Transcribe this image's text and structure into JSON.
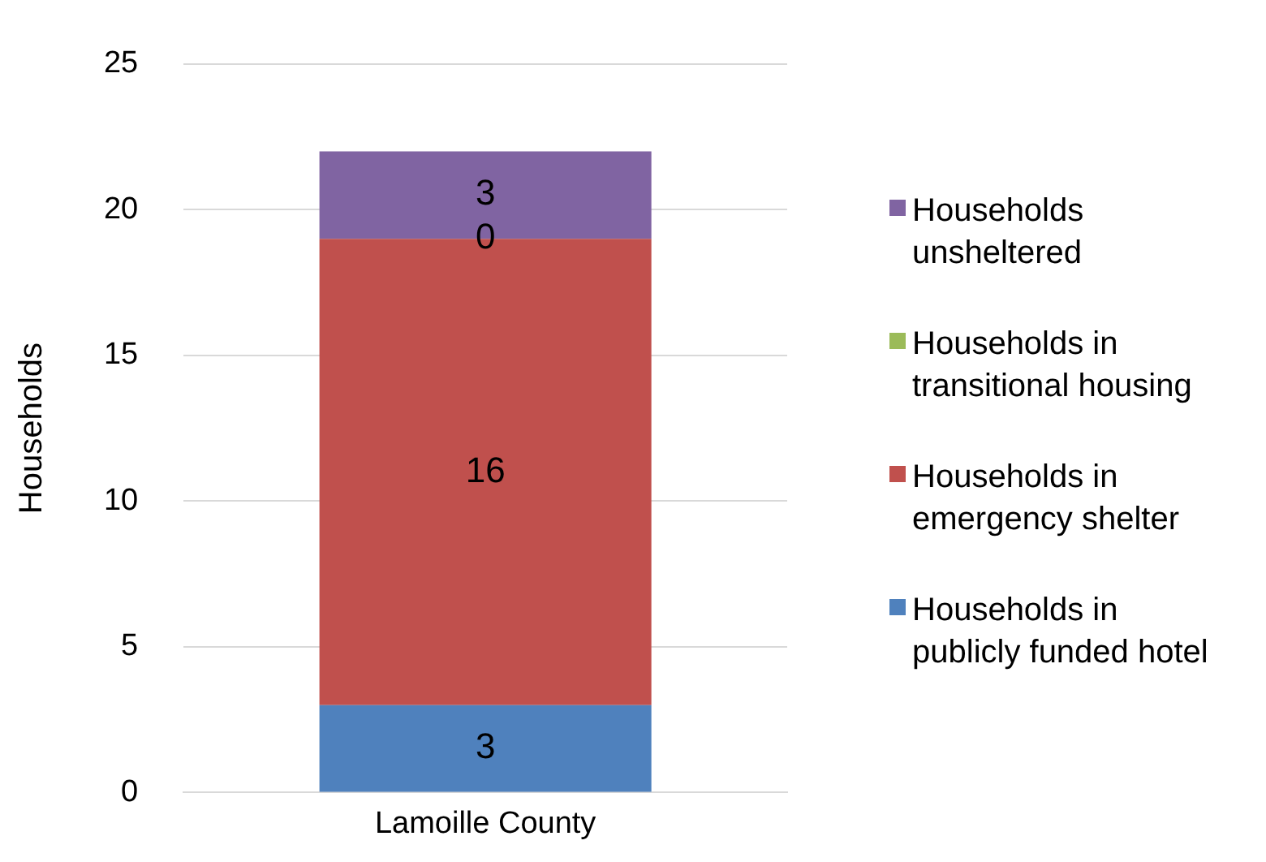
{
  "chart_data": {
    "type": "bar",
    "stacked": true,
    "ylabel": "Households",
    "categories": [
      "Lamoille County"
    ],
    "series": [
      {
        "name": "Households in publicly funded hotel",
        "color": "#4f81bd",
        "values": [
          3
        ]
      },
      {
        "name": "Households in emergency shelter",
        "color": "#c0504d",
        "values": [
          16
        ]
      },
      {
        "name": "Households in transitional housing",
        "color": "#9bbb59",
        "values": [
          0
        ]
      },
      {
        "name": "Households unsheltered",
        "color": "#8064a2",
        "values": [
          3
        ]
      }
    ],
    "ylim": [
      0,
      25
    ],
    "yticks": [
      0,
      5,
      10,
      15,
      20,
      25
    ],
    "grid": "y",
    "legend": "right",
    "data_labels": true
  }
}
